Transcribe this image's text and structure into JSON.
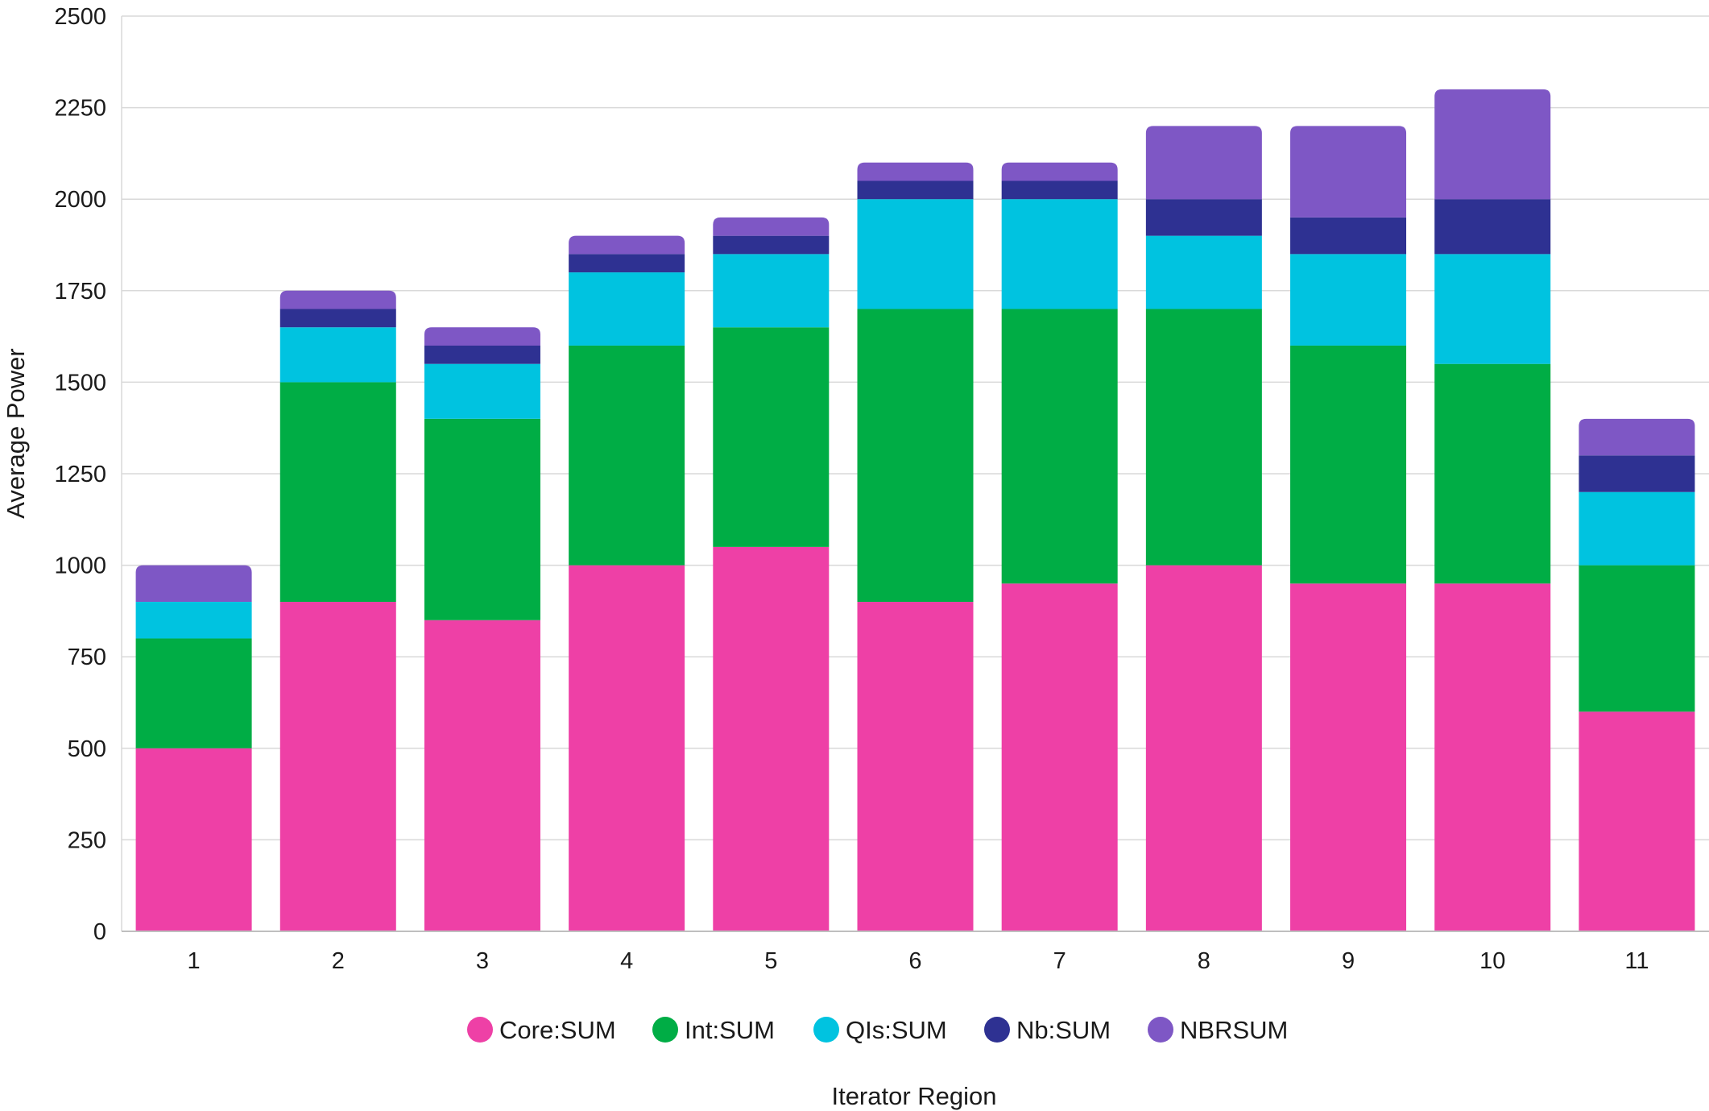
{
  "chart_data": {
    "type": "bar",
    "stacked": true,
    "categories": [
      "1",
      "2",
      "3",
      "4",
      "5",
      "6",
      "7",
      "8",
      "9",
      "10",
      "11"
    ],
    "series": [
      {
        "name": "Core:SUM",
        "color": "#ee40a6",
        "values": [
          500,
          900,
          850,
          1000,
          1050,
          900,
          950,
          1000,
          950,
          950,
          600
        ]
      },
      {
        "name": "Int:SUM",
        "color": "#00ad45",
        "values": [
          300,
          600,
          550,
          600,
          600,
          800,
          750,
          700,
          650,
          600,
          400
        ]
      },
      {
        "name": "QIs:SUM",
        "color": "#00c3e0",
        "values": [
          100,
          150,
          150,
          200,
          200,
          300,
          300,
          200,
          250,
          300,
          200
        ]
      },
      {
        "name": "Nb:SUM",
        "color": "#2e3192",
        "values": [
          0,
          50,
          50,
          50,
          50,
          50,
          50,
          100,
          100,
          150,
          100
        ]
      },
      {
        "name": "NBRSUM",
        "color": "#7e57c5",
        "values": [
          100,
          50,
          50,
          50,
          50,
          50,
          50,
          200,
          250,
          300,
          100
        ]
      }
    ],
    "xlabel": "Iterator Region",
    "ylabel": "Average Power",
    "ylim": [
      0,
      2500
    ],
    "yticks": [
      0,
      250,
      500,
      750,
      1000,
      1250,
      1500,
      1750,
      2000,
      2250,
      2500
    ],
    "grid": true,
    "legend_position": "bottom"
  }
}
